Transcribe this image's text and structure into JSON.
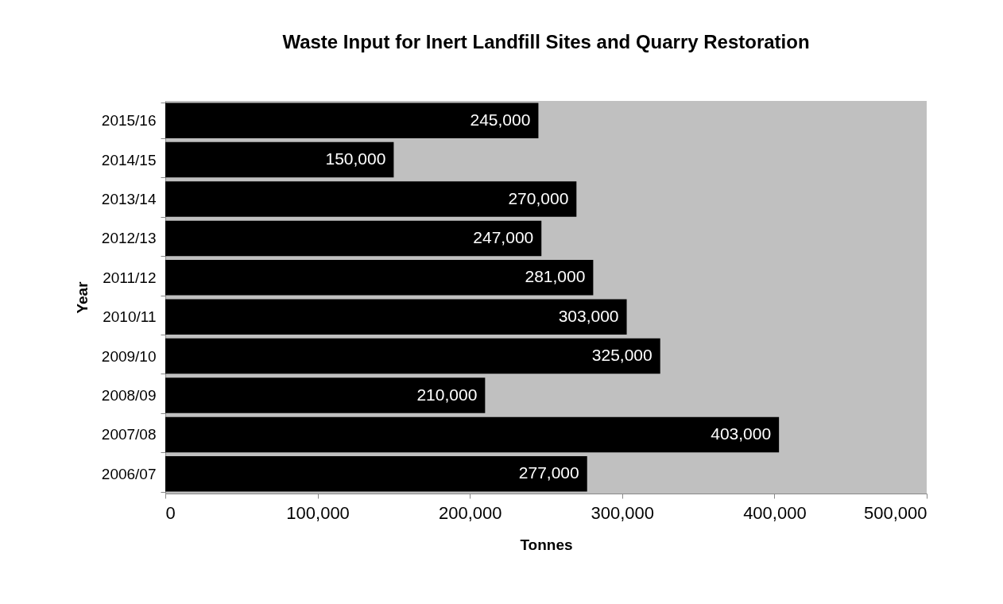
{
  "chart_data": {
    "type": "bar",
    "orientation": "horizontal",
    "title": "Waste Input for Inert Landfill Sites and Quarry Restoration",
    "xlabel": "Tonnes",
    "ylabel": "Year",
    "categories": [
      "2015/16",
      "2014/15",
      "2013/14",
      "2012/13",
      "2011/12",
      "2010/11",
      "2009/10",
      "2008/09",
      "2007/08",
      "2006/07"
    ],
    "values": [
      245000,
      150000,
      270000,
      247000,
      281000,
      303000,
      325000,
      210000,
      403000,
      277000
    ],
    "value_labels": [
      "245,000",
      "150,000",
      "270,000",
      "247,000",
      "281,000",
      "303,000",
      "325,000",
      "210,000",
      "403,000",
      "277,000"
    ],
    "color": "#000000",
    "xlim": [
      0,
      500000
    ],
    "xticks": [
      0,
      {
        "value": 100000,
        "label": "100,000"
      },
      {
        "value": 200000,
        "label": "200,000"
      },
      {
        "value": 300000,
        "label": "300,000"
      },
      {
        "value": 400000,
        "label": "400,000"
      },
      {
        "value": 500000,
        "label": "500,000"
      }
    ],
    "grid": false
  }
}
